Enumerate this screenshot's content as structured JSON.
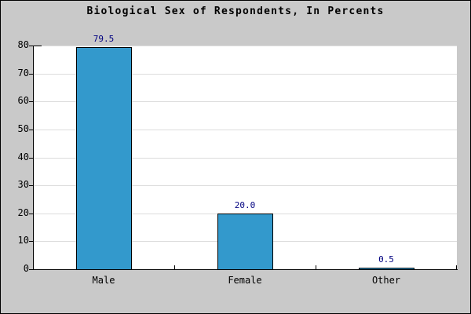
{
  "window": {
    "background": "#c9c9c9",
    "border_color": "#000000"
  },
  "chart_data": {
    "type": "bar",
    "title": "Biological Sex of Respondents, In Percents",
    "categories": [
      "Male",
      "Female",
      "Other"
    ],
    "values": [
      79.5,
      20.0,
      0.5
    ],
    "value_labels": [
      "79.5",
      "20.0",
      "0.5"
    ],
    "xlabel": "",
    "ylabel": "",
    "ylim": [
      0,
      80
    ],
    "yticks": [
      0,
      10,
      20,
      30,
      40,
      50,
      60,
      70,
      80
    ],
    "grid": "horizontal",
    "legend": "none",
    "colors": {
      "bar_fill": "#3399cc",
      "bar_border": "#000000",
      "value_label": "#000080",
      "plot_background": "#ffffff",
      "grid_line": "#dcdcdc",
      "axis": "#000000",
      "text": "#000000"
    }
  }
}
